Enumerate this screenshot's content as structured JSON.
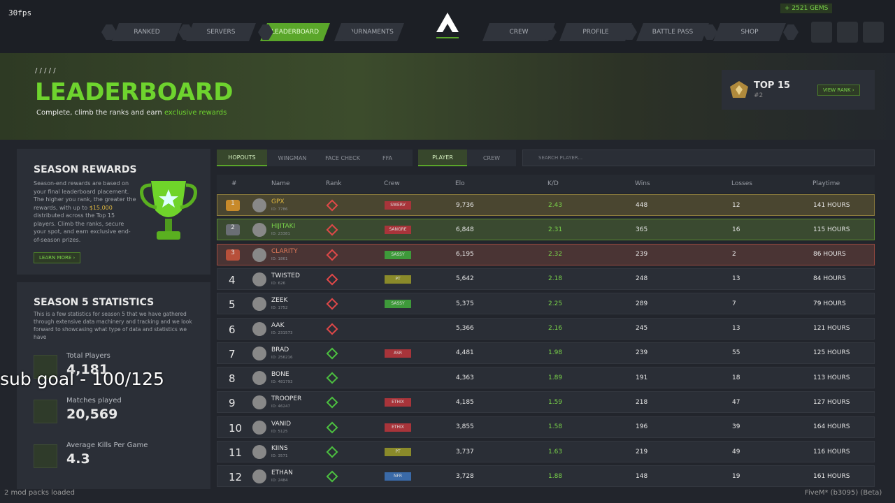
{
  "overlay": {
    "fps": "30fps",
    "gems": "2521 GEMS",
    "sub_goal": "sub goal - 100/125",
    "footer_left": "2 mod packs loaded",
    "footer_right": "FiveM* (b3095) (Beta)"
  },
  "nav": {
    "left": [
      "RANKED",
      "SERVERS",
      "LEADERBOARD",
      "TOURNAMENTS"
    ],
    "right": [
      "CREW",
      "PROFILE",
      "BATTLE PASS",
      "SHOP"
    ],
    "active": "LEADERBOARD"
  },
  "hero": {
    "slashes": "/ / / / /",
    "title": "LEADERBOARD",
    "subtitle": "Complete, climb the ranks and earn",
    "highlight": "exclusive rewards"
  },
  "rank_card": {
    "title": "TOP 15",
    "position": "#2",
    "button": "VIEW RANK ›"
  },
  "rewards": {
    "title": "SEASON REWARDS",
    "text_before": "Season-end rewards are based on your final leaderboard placement. The higher you rank, the greater the rewards, with up to",
    "amount": "$15,000",
    "text_after": "distributed across the Top 15 players. Climb the ranks, secure your spot, and earn exclusive end-of-season prizes.",
    "button": "LEARN MORE ›"
  },
  "stats": {
    "title": "SEASON 5 STATISTICS",
    "description": "This is a few statistics for season 5 that we have gathered through extensive data machinery and tracking and we look forward to showcasing what type of data and statistics we have",
    "items": [
      {
        "label": "Total Players",
        "value": "4,181"
      },
      {
        "label": "Matches played",
        "value": "20,569"
      },
      {
        "label": "Average Kills Per Game",
        "value": "4.3"
      }
    ]
  },
  "tabs": {
    "modes": [
      "HOPOUTS",
      "WINGMAN",
      "FACE CHECK",
      "FFA"
    ],
    "views": [
      "PLAYER",
      "CREW"
    ],
    "search": "SEARCH PLAYER..."
  },
  "table": {
    "columns": [
      "#",
      "Name",
      "Rank",
      "Crew",
      "Elo",
      "K/D",
      "Wins",
      "Losses",
      "Playtime"
    ],
    "rows": [
      {
        "pos": "1",
        "name": "GPX",
        "id": "ID: 7786",
        "rank_color": "#e04848",
        "crew": "SWERV",
        "crew_color": "#a8343a",
        "elo": "9,736",
        "kd": "2.43",
        "wins": "448",
        "losses": "12",
        "playtime": "141 HOURS"
      },
      {
        "pos": "2",
        "name": "HIJITAKI",
        "id": "ID: 23381",
        "rank_color": "#e04848",
        "crew": "SANGRE",
        "crew_color": "#a8343a",
        "elo": "6,848",
        "kd": "2.31",
        "wins": "365",
        "losses": "16",
        "playtime": "115 HOURS"
      },
      {
        "pos": "3",
        "name": "CLARITY",
        "id": "ID: 1861",
        "rank_color": "#e04848",
        "crew": "SASSY",
        "crew_color": "#3e9a3a",
        "elo": "6,195",
        "kd": "2.32",
        "wins": "239",
        "losses": "2",
        "playtime": "86 HOURS"
      },
      {
        "pos": "4",
        "name": "TWISTED",
        "id": "ID: 626",
        "rank_color": "#e04848",
        "crew": "PT",
        "crew_color": "#8a8a2a",
        "elo": "5,642",
        "kd": "2.18",
        "wins": "248",
        "losses": "13",
        "playtime": "84 HOURS"
      },
      {
        "pos": "5",
        "name": "ZEEK",
        "id": "ID: 1752",
        "rank_color": "#e04848",
        "crew": "SASSY",
        "crew_color": "#3e9a3a",
        "elo": "5,375",
        "kd": "2.25",
        "wins": "289",
        "losses": "7",
        "playtime": "79 HOURS"
      },
      {
        "pos": "6",
        "name": "AAK",
        "id": "ID: 231573",
        "rank_color": "#e04848",
        "crew": null,
        "crew_color": null,
        "elo": "5,366",
        "kd": "2.16",
        "wins": "245",
        "losses": "13",
        "playtime": "121 HOURS"
      },
      {
        "pos": "7",
        "name": "BRAD",
        "id": "ID: 256216",
        "rank_color": "#4cc040",
        "crew": "ASR",
        "crew_color": "#a8343a",
        "elo": "4,481",
        "kd": "1.98",
        "wins": "239",
        "losses": "55",
        "playtime": "125 HOURS"
      },
      {
        "pos": "8",
        "name": "BONE",
        "id": "ID: 481793",
        "rank_color": "#4cc040",
        "crew": null,
        "crew_color": null,
        "elo": "4,363",
        "kd": "1.89",
        "wins": "191",
        "losses": "18",
        "playtime": "113 HOURS"
      },
      {
        "pos": "9",
        "name": "TROOPER",
        "id": "ID: 46247",
        "rank_color": "#4cc040",
        "crew": "ETHIX",
        "crew_color": "#a8343a",
        "elo": "4,185",
        "kd": "1.59",
        "wins": "218",
        "losses": "47",
        "playtime": "127 HOURS"
      },
      {
        "pos": "10",
        "name": "VANID",
        "id": "ID: 5125",
        "rank_color": "#4cc040",
        "crew": "ETHIX",
        "crew_color": "#a8343a",
        "elo": "3,855",
        "kd": "1.58",
        "wins": "196",
        "losses": "39",
        "playtime": "164 HOURS"
      },
      {
        "pos": "11",
        "name": "KIINS",
        "id": "ID: 3571",
        "rank_color": "#4cc040",
        "crew": "PT",
        "crew_color": "#8a8a2a",
        "elo": "3,737",
        "kd": "1.63",
        "wins": "219",
        "losses": "49",
        "playtime": "116 HOURS"
      },
      {
        "pos": "12",
        "name": "ETHAN",
        "id": "ID: 2484",
        "rank_color": "#4cc040",
        "crew": "NFR",
        "crew_color": "#3a6aa8",
        "elo": "3,728",
        "kd": "1.88",
        "wins": "148",
        "losses": "19",
        "playtime": "161 HOURS"
      }
    ]
  }
}
